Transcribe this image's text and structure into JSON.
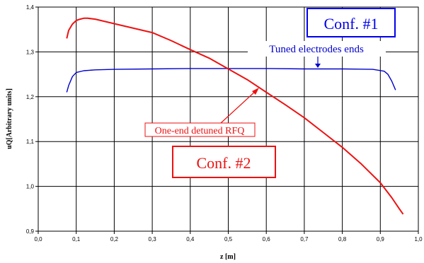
{
  "chart_data": {
    "type": "line",
    "title": "",
    "xlabel": "z [m]",
    "ylabel": "uQ[Arbitrary units]",
    "xlim": [
      0.0,
      1.0
    ],
    "ylim": [
      0.9,
      1.4
    ],
    "x_ticks": [
      "0,0",
      "0,1",
      "0,2",
      "0,3",
      "0,4",
      "0,5",
      "0,6",
      "0,7",
      "0,8",
      "0,9",
      "1,0"
    ],
    "y_ticks": [
      "0,9",
      "1,0",
      "1,1",
      "1,2",
      "1,3",
      "1,4"
    ],
    "x_tick_values": [
      0.0,
      0.1,
      0.2,
      0.3,
      0.4,
      0.5,
      0.6,
      0.7,
      0.8,
      0.9,
      1.0
    ],
    "y_tick_values": [
      0.9,
      1.0,
      1.1,
      1.2,
      1.3,
      1.4
    ],
    "grid": true,
    "series": [
      {
        "color": "#0000cc",
        "x": [
          0.075,
          0.08,
          0.09,
          0.1,
          0.12,
          0.15,
          0.2,
          0.3,
          0.4,
          0.5,
          0.6,
          0.7,
          0.8,
          0.88,
          0.91,
          0.92,
          0.93,
          0.94
        ],
        "y": [
          1.21,
          1.225,
          1.245,
          1.254,
          1.258,
          1.26,
          1.261,
          1.262,
          1.263,
          1.263,
          1.263,
          1.262,
          1.262,
          1.261,
          1.257,
          1.25,
          1.235,
          1.215
        ]
      },
      {
        "color": "#ee1111",
        "x": [
          0.075,
          0.08,
          0.09,
          0.1,
          0.11,
          0.12,
          0.13,
          0.15,
          0.2,
          0.3,
          0.35,
          0.4,
          0.45,
          0.5,
          0.55,
          0.6,
          0.65,
          0.7,
          0.75,
          0.8,
          0.85,
          0.9,
          0.93,
          0.95,
          0.96
        ],
        "y": [
          1.33,
          1.348,
          1.362,
          1.37,
          1.373,
          1.375,
          1.375,
          1.373,
          1.363,
          1.343,
          1.325,
          1.305,
          1.286,
          1.262,
          1.238,
          1.21,
          1.182,
          1.153,
          1.12,
          1.087,
          1.05,
          1.008,
          0.975,
          0.95,
          0.938
        ]
      }
    ],
    "annotations": [
      {
        "text": "Conf. #1"
      },
      {
        "text": "Tuned electrodes ends"
      },
      {
        "text": "One-end detuned RFQ"
      },
      {
        "text": "Conf. #2"
      }
    ]
  }
}
